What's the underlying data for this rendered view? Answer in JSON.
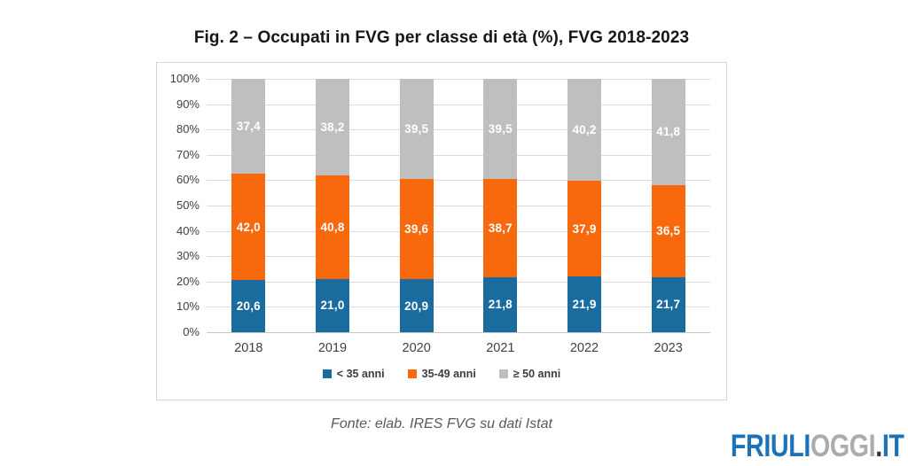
{
  "title": "Fig. 2 – Occupati in FVG per classe di età (%), FVG 2018-2023",
  "source": "Fonte: elab. IRES FVG su dati Istat",
  "logo": {
    "part1": "FRIULI",
    "part2": "OGGI",
    "dot": ".",
    "part3": "IT"
  },
  "colors": {
    "blue": "#1b6c9e",
    "orange": "#f8690e",
    "gray": "#bfbfbf",
    "gridline": "#dcdcdc",
    "axis_text": "#404040"
  },
  "chart_data": {
    "type": "bar",
    "stacked": true,
    "title": "Fig. 2 – Occupati in FVG per classe di età (%), FVG 2018-2023",
    "xlabel": "",
    "ylabel": "",
    "categories": [
      "2018",
      "2019",
      "2020",
      "2021",
      "2022",
      "2023"
    ],
    "series": [
      {
        "name": "< 35 anni",
        "color": "#1b6c9e",
        "values": [
          20.6,
          21.0,
          20.9,
          21.8,
          21.9,
          21.7
        ],
        "labels": [
          "20,6",
          "21,0",
          "20,9",
          "21,8",
          "21,9",
          "21,7"
        ]
      },
      {
        "name": "35-49 anni",
        "color": "#f8690e",
        "values": [
          42.0,
          40.8,
          39.6,
          38.7,
          37.9,
          36.5
        ],
        "labels": [
          "42,0",
          "40,8",
          "39,6",
          "38,7",
          "37,9",
          "36,5"
        ]
      },
      {
        "name": "≥ 50 anni",
        "color": "#bfbfbf",
        "values": [
          37.4,
          38.2,
          39.5,
          39.5,
          40.2,
          41.8
        ],
        "labels": [
          "37,4",
          "38,2",
          "39,5",
          "39,5",
          "40,2",
          "41,8"
        ]
      }
    ],
    "ylim": [
      0,
      100
    ],
    "ytick_step": 10,
    "yticks": [
      "0%",
      "10%",
      "20%",
      "30%",
      "40%",
      "50%",
      "60%",
      "70%",
      "80%",
      "90%",
      "100%"
    ],
    "grid": true,
    "legend_position": "bottom"
  }
}
